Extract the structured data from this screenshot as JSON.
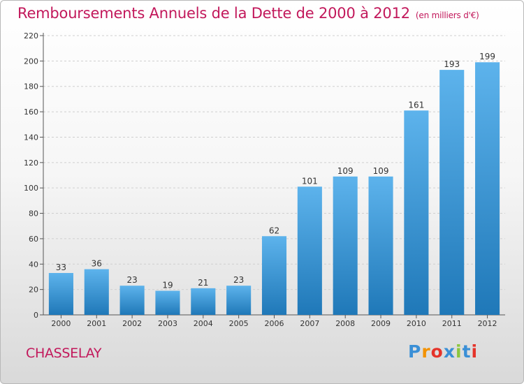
{
  "header": {
    "title": "Remboursements Annuels de la Dette de 2000 à 2012",
    "subtitle": "(en milliers d'€)"
  },
  "footer": {
    "city": "CHASSELAY",
    "brand": "Proxiti",
    "brand_colors": [
      "#3a8fd6",
      "#f39200",
      "#e5332a",
      "#3a8fd6",
      "#8cc63f",
      "#3a8fd6",
      "#e5332a"
    ]
  },
  "colors": {
    "bar_light": "#5db3ec",
    "bar_dark": "#1f78b8",
    "title": "#c2185b",
    "grid": "#cfcfcf"
  },
  "chart_data": {
    "type": "bar",
    "title": "Remboursements Annuels de la Dette de 2000 à 2012",
    "subtitle": "(en milliers d'€)",
    "categories": [
      "2000",
      "2001",
      "2002",
      "2003",
      "2004",
      "2005",
      "2006",
      "2007",
      "2008",
      "2009",
      "2010",
      "2011",
      "2012"
    ],
    "values": [
      33,
      36,
      23,
      19,
      21,
      23,
      62,
      101,
      109,
      109,
      161,
      193,
      199
    ],
    "ylim": [
      0,
      220
    ],
    "yticks": [
      0,
      20,
      40,
      60,
      80,
      100,
      120,
      140,
      160,
      180,
      200,
      220
    ],
    "grid": true,
    "data_labels": true
  }
}
